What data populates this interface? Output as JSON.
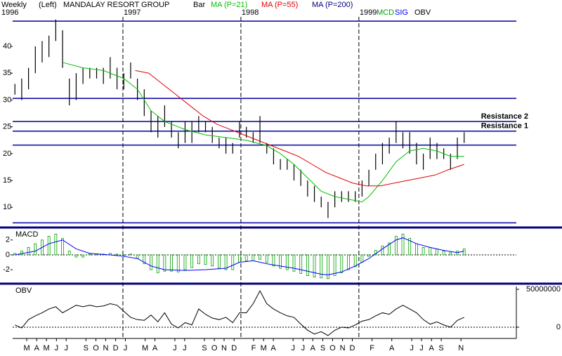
{
  "chart_data": [
    {
      "type": "ohlc",
      "frequency": "Weekly",
      "scale_side": "(Left)",
      "title": "MANDALAY RESORT GROUP",
      "xlim": [
        0,
        222
      ],
      "ylim": [
        6.5,
        45.5
      ],
      "yticks": [
        10,
        15,
        20,
        25,
        30,
        35,
        40
      ],
      "year_labels": [
        "1996",
        "1997",
        "1998",
        "1999"
      ],
      "year_lines": [
        48.6,
        100.6,
        152.6
      ],
      "x": [
        1,
        4,
        7,
        10,
        13,
        16,
        19,
        22,
        25,
        28,
        31,
        34,
        37,
        40,
        43,
        46,
        49,
        52,
        55,
        58,
        61,
        64,
        67,
        70,
        73,
        76,
        79,
        82,
        85,
        88,
        91,
        94,
        97,
        100,
        103,
        106,
        109,
        112,
        115,
        118,
        121,
        124,
        127,
        130,
        133,
        136,
        139,
        142,
        145,
        148,
        151,
        154,
        157,
        160,
        163,
        166,
        169,
        172,
        175,
        178,
        181,
        184,
        187,
        190,
        193,
        196,
        199
      ],
      "levels": [
        {
          "value": 44.7
        },
        {
          "value": 30.3
        },
        {
          "value": 26.0,
          "label": "Resistance 2"
        },
        {
          "value": 24.2,
          "label": "Resistance 1"
        },
        {
          "value": 21.6
        },
        {
          "value": 7.1
        }
      ],
      "series": [
        {
          "name": "Bar",
          "color": "#000000",
          "high": [
            33,
            34,
            36,
            40,
            41,
            42,
            45,
            43,
            34,
            35,
            36,
            36,
            36,
            36,
            38,
            36,
            35,
            37,
            34,
            32,
            28,
            27,
            29,
            26,
            24,
            26,
            26,
            27,
            26,
            25,
            23,
            23,
            22,
            26,
            25,
            24,
            27,
            22,
            21,
            19,
            19,
            18,
            17,
            15,
            14,
            12,
            11,
            13,
            13,
            13,
            13,
            15,
            17,
            20,
            22,
            23,
            26,
            24,
            24,
            22,
            20,
            23,
            22,
            21,
            20,
            23,
            24
          ],
          "low": [
            31,
            30,
            32,
            35,
            37,
            38,
            41,
            36,
            29,
            30,
            33,
            34,
            34,
            33,
            34,
            32,
            32,
            34,
            30,
            27,
            24,
            23,
            25,
            23,
            21,
            22,
            22,
            24,
            24,
            22,
            21,
            20,
            20,
            23,
            23,
            22,
            22,
            20,
            18,
            17,
            17,
            15,
            14,
            12,
            11,
            10,
            8,
            10,
            11,
            11,
            11,
            12,
            14,
            17,
            18,
            20,
            22,
            21,
            20,
            18,
            17,
            19,
            19,
            19,
            17,
            19,
            22
          ]
        },
        {
          "name": "MA (P=21)",
          "color": "#00c000",
          "x": [
            22,
            31,
            40,
            49,
            55,
            61,
            67,
            76,
            85,
            94,
            103,
            112,
            118,
            124,
            130,
            136,
            142,
            148,
            154,
            157,
            163,
            169,
            175,
            181,
            187,
            193,
            199
          ],
          "values": [
            37,
            36,
            35.5,
            34,
            32,
            28,
            26,
            24.5,
            23.5,
            23,
            22.5,
            21.5,
            20,
            18,
            15.5,
            13,
            12,
            11.5,
            11,
            12,
            15,
            18.5,
            20.5,
            21,
            20.5,
            19.5,
            19.5
          ]
        },
        {
          "name": "MA (P=55)",
          "color": "#e00000",
          "x": [
            54,
            60,
            66,
            72,
            78,
            84,
            90,
            96,
            102,
            108,
            114,
            120,
            126,
            132,
            138,
            144,
            150,
            156,
            162,
            168,
            174,
            180,
            186,
            192,
            199
          ],
          "values": [
            35.5,
            35,
            33,
            31,
            29,
            27,
            25.5,
            24.5,
            23.5,
            22.5,
            21.5,
            20.5,
            19.5,
            18,
            16.5,
            15.5,
            14.5,
            14,
            14,
            14.5,
            15,
            15.5,
            16,
            17,
            18
          ]
        },
        {
          "name": "MA (P=200)",
          "color": "#000080"
        }
      ]
    },
    {
      "type": "macd",
      "title": "MACD",
      "xlim": [
        0,
        222
      ],
      "ylim": [
        -3.5,
        3.3
      ],
      "yticks": [
        -2,
        0,
        2
      ],
      "x": [
        1,
        4,
        7,
        10,
        13,
        16,
        19,
        22,
        25,
        28,
        31,
        34,
        37,
        40,
        43,
        46,
        49,
        52,
        55,
        58,
        61,
        64,
        67,
        70,
        73,
        76,
        79,
        82,
        85,
        88,
        91,
        94,
        97,
        100,
        103,
        106,
        109,
        112,
        115,
        118,
        121,
        124,
        127,
        130,
        133,
        136,
        139,
        142,
        145,
        148,
        151,
        154,
        157,
        160,
        163,
        166,
        169,
        172,
        175,
        178,
        181,
        184,
        187,
        190,
        193,
        196,
        199
      ],
      "series": [
        {
          "name": "MCD",
          "color": "#00a000",
          "values": [
            0.2,
            0.5,
            1.0,
            1.5,
            2.0,
            2.5,
            2.8,
            2.2,
            0.5,
            -0.3,
            -0.3,
            0.1,
            0.1,
            0.1,
            0.2,
            0.1,
            -0.1,
            0.1,
            -0.5,
            -1.2,
            -2.0,
            -2.4,
            -2.2,
            -2.2,
            -2.3,
            -2.0,
            -1.7,
            -1.2,
            -1.3,
            -1.5,
            -1.8,
            -2.0,
            -2.0,
            -1.0,
            -0.8,
            -0.8,
            -0.6,
            -1.0,
            -1.5,
            -1.8,
            -2.0,
            -2.2,
            -2.5,
            -2.8,
            -3.0,
            -3.1,
            -3.2,
            -2.8,
            -2.4,
            -2.0,
            -1.6,
            -1.0,
            -0.2,
            0.6,
            1.2,
            1.6,
            2.5,
            2.8,
            2.2,
            1.5,
            1.0,
            1.0,
            0.8,
            0.5,
            0.3,
            0.5,
            0.8
          ]
        },
        {
          "name": "SIG",
          "color": "#0000ff",
          "x": [
            1,
            10,
            16,
            22,
            28,
            34,
            43,
            49,
            55,
            61,
            67,
            76,
            85,
            94,
            100,
            106,
            112,
            118,
            124,
            130,
            136,
            139,
            145,
            151,
            157,
            163,
            169,
            172,
            178,
            184,
            190,
            196,
            199
          ],
          "values": [
            0,
            0.5,
            1.5,
            2.0,
            0.8,
            0.2,
            0,
            -0.2,
            -0.5,
            -1.5,
            -2.0,
            -2.1,
            -2.0,
            -1.8,
            -1.0,
            -0.8,
            -1.2,
            -1.5,
            -1.8,
            -2.2,
            -2.6,
            -2.7,
            -2.3,
            -1.5,
            -0.5,
            0.8,
            2.0,
            2.3,
            1.5,
            1.0,
            0.6,
            0.3,
            0.5
          ]
        }
      ]
    },
    {
      "type": "line",
      "title": "OBV",
      "xlim": [
        0,
        222
      ],
      "ylim": [
        -13000000,
        53700000
      ],
      "yticks": [
        0,
        50000000
      ],
      "xticks": [
        {
          "value": 6.2,
          "label": "M"
        },
        {
          "value": 10.6,
          "label": "A"
        },
        {
          "value": 14.9,
          "label": "M"
        },
        {
          "value": 19.3,
          "label": "J"
        },
        {
          "value": 23.6,
          "label": "J"
        },
        {
          "value": 32.3,
          "label": "S"
        },
        {
          "value": 36.7,
          "label": "O"
        },
        {
          "value": 41.0,
          "label": "N"
        },
        {
          "value": 45.4,
          "label": "D"
        },
        {
          "value": 49.7,
          "label": "J"
        },
        {
          "value": 58.4,
          "label": "M"
        },
        {
          "value": 62.7,
          "label": "A"
        },
        {
          "value": 71.5,
          "label": "J"
        },
        {
          "value": 75.8,
          "label": "J"
        },
        {
          "value": 84.5,
          "label": "S"
        },
        {
          "value": 88.9,
          "label": "O"
        },
        {
          "value": 93.2,
          "label": "N"
        },
        {
          "value": 97.6,
          "label": "D"
        },
        {
          "value": 106.2,
          "label": "F"
        },
        {
          "value": 110.6,
          "label": "M"
        },
        {
          "value": 114.9,
          "label": "A"
        },
        {
          "value": 123.6,
          "label": "J"
        },
        {
          "value": 128.0,
          "label": "J"
        },
        {
          "value": 132.3,
          "label": "A"
        },
        {
          "value": 136.7,
          "label": "S"
        },
        {
          "value": 141.0,
          "label": "O"
        },
        {
          "value": 145.4,
          "label": "N"
        },
        {
          "value": 149.7,
          "label": "D"
        },
        {
          "value": 158.4,
          "label": "F"
        },
        {
          "value": 167.1,
          "label": "A"
        },
        {
          "value": 175.9,
          "label": "J"
        },
        {
          "value": 180.2,
          "label": "J"
        },
        {
          "value": 184.6,
          "label": "A"
        },
        {
          "value": 188.9,
          "label": "S"
        },
        {
          "value": 197.6,
          "label": "N"
        }
      ],
      "x": [
        1,
        4,
        7,
        10,
        13,
        16,
        19,
        22,
        25,
        28,
        31,
        34,
        37,
        40,
        43,
        46,
        49,
        52,
        55,
        58,
        61,
        64,
        67,
        70,
        73,
        76,
        79,
        82,
        85,
        88,
        91,
        94,
        97,
        100,
        103,
        106,
        109,
        112,
        115,
        118,
        121,
        124,
        127,
        130,
        133,
        136,
        139,
        142,
        145,
        148,
        151,
        154,
        157,
        160,
        163,
        166,
        169,
        172,
        175,
        178,
        181,
        184,
        187,
        190,
        193,
        196,
        199
      ],
      "series": [
        {
          "name": "OBV",
          "color": "#000000",
          "values": [
            3000000,
            -1000000,
            10000000,
            15000000,
            19000000,
            24000000,
            27000000,
            19000000,
            24000000,
            29000000,
            27000000,
            29000000,
            27000000,
            28000000,
            31000000,
            29000000,
            21000000,
            13000000,
            10000000,
            9000000,
            16000000,
            7000000,
            19000000,
            4000000,
            -1000000,
            6000000,
            3000000,
            24000000,
            17000000,
            12000000,
            10000000,
            13000000,
            6000000,
            19000000,
            19000000,
            31000000,
            48000000,
            31000000,
            24000000,
            19000000,
            15000000,
            13000000,
            4000000,
            -4000000,
            -9000000,
            -6000000,
            -11000000,
            -4000000,
            0,
            -1000000,
            3000000,
            8000000,
            10000000,
            15000000,
            19000000,
            17000000,
            24000000,
            29000000,
            24000000,
            19000000,
            10000000,
            4000000,
            7000000,
            3000000,
            0,
            9000000,
            13000000
          ]
        }
      ]
    }
  ]
}
